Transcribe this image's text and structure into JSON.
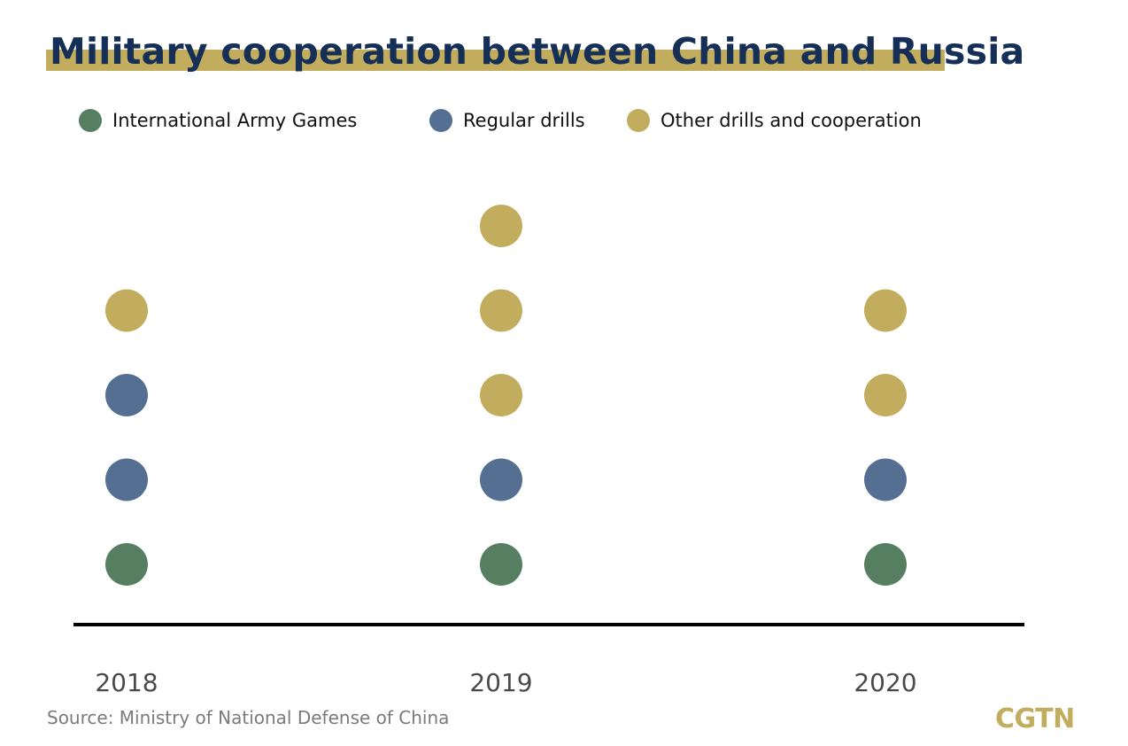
{
  "chart_data": {
    "type": "scatter",
    "title": "Military cooperation between China and Russia",
    "categories": [
      "2018",
      "2019",
      "2020"
    ],
    "series": [
      {
        "name": "International Army Games",
        "color": "#567f62",
        "values": [
          1,
          1,
          1
        ]
      },
      {
        "name": "Regular drills",
        "color": "#546f92",
        "values": [
          2,
          1,
          1
        ]
      },
      {
        "name": "Other drills and cooperation",
        "color": "#c2ad5e",
        "values": [
          1,
          3,
          2
        ]
      }
    ],
    "legend_position": "top",
    "source": "Source: Ministry of National Defense of China"
  },
  "brand": {
    "logo_text": "CGTN",
    "title_color": "#152f56",
    "accent": "#c2ad5e",
    "axis_color": "#000000"
  }
}
